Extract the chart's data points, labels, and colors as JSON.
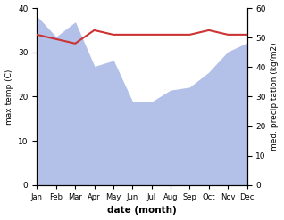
{
  "months": [
    "Jan",
    "Feb",
    "Mar",
    "Apr",
    "May",
    "Jun",
    "Jul",
    "Aug",
    "Sep",
    "Oct",
    "Nov",
    "Dec"
  ],
  "temp_line": [
    34,
    33,
    32,
    35,
    34,
    34,
    34,
    34,
    34,
    35,
    34,
    34
  ],
  "rainfall": [
    57,
    50,
    55,
    40,
    42,
    28,
    28,
    32,
    33,
    38,
    45,
    48
  ],
  "temp_ylim": [
    0,
    40
  ],
  "precip_ylim": [
    0,
    60
  ],
  "temp_color": "#cc3333",
  "rainfall_color": "#b3c0e8",
  "ylabel_left": "max temp (C)",
  "ylabel_right": "med. precipitation (kg/m2)",
  "xlabel": "date (month)",
  "bg_color": "#ffffff",
  "temp_linewidth": 1.5
}
